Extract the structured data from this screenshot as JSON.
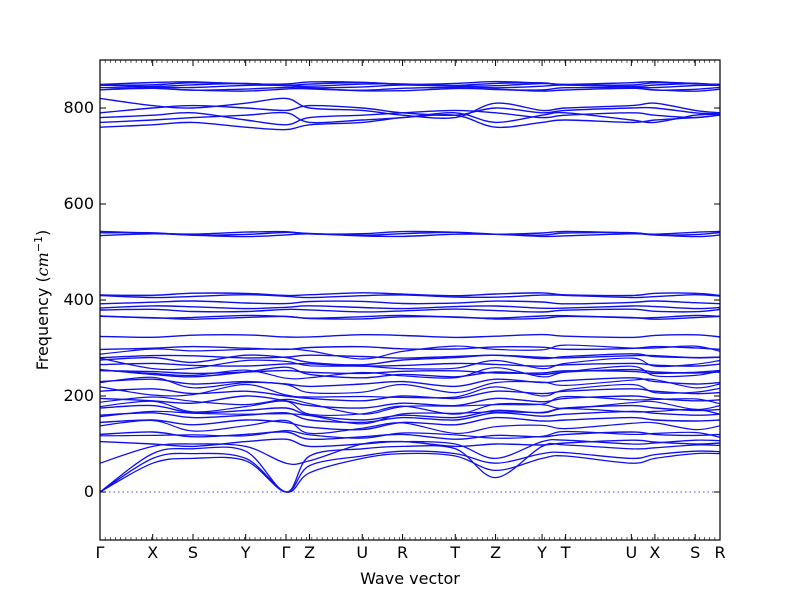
{
  "chart_data": {
    "type": "line",
    "xlabel": "Wave vector",
    "ylabel_text": "Frequency (",
    "ylabel_unit": "cm",
    "ylabel_exp": "−1",
    "ylabel_close": ")",
    "ylim": [
      -100,
      900
    ],
    "yticks": [
      0,
      200,
      400,
      600,
      800
    ],
    "zero_line": true,
    "grid": false,
    "colors": {
      "band": "#1010ee",
      "zero": "#4444ff",
      "axis": "#000000"
    },
    "kpoints": [
      {
        "label": "Γ",
        "x": 0.0
      },
      {
        "label": "X",
        "x": 0.085
      },
      {
        "label": "S",
        "x": 0.15
      },
      {
        "label": "Y",
        "x": 0.235
      },
      {
        "label": "Γ",
        "x": 0.3
      },
      {
        "label": "Z",
        "x": 0.338
      },
      {
        "label": "U",
        "x": 0.423
      },
      {
        "label": "R",
        "x": 0.488
      },
      {
        "label": "T",
        "x": 0.573
      },
      {
        "label": "Z",
        "x": 0.638
      },
      {
        "label": "Y",
        "x": 0.713
      },
      {
        "label": "T",
        "x": 0.751
      },
      {
        "label": "U",
        "x": 0.857
      },
      {
        "label": "X",
        "x": 0.895
      },
      {
        "label": "S",
        "x": 0.96
      },
      {
        "label": "R",
        "x": 1.0
      }
    ],
    "bands_flat": [
      838,
      840,
      845,
      848,
      850,
      852,
      535,
      538,
      540,
      408,
      412,
      395,
      385,
      378,
      363,
      365,
      325,
      300,
      282,
      265,
      250
    ],
    "bands_mid": [
      [
        175,
        180,
        165,
        170,
        175,
        160,
        150,
        160,
        155,
        170,
        165,
        175,
        180,
        175,
        170,
        172
      ],
      [
        210,
        215,
        205,
        210,
        200,
        195,
        190,
        200,
        195,
        210,
        205,
        210,
        215,
        210,
        205,
        207
      ],
      [
        230,
        235,
        225,
        230,
        225,
        220,
        225,
        230,
        220,
        235,
        228,
        232,
        238,
        230,
        225,
        228
      ],
      [
        145,
        150,
        140,
        150,
        145,
        135,
        130,
        145,
        140,
        155,
        148,
        150,
        155,
        150,
        148,
        150
      ],
      [
        120,
        125,
        115,
        120,
        125,
        110,
        115,
        120,
        110,
        118,
        115,
        120,
        125,
        120,
        118,
        120
      ],
      [
        195,
        190,
        185,
        200,
        190,
        180,
        175,
        185,
        180,
        195,
        188,
        195,
        200,
        195,
        190,
        192
      ],
      [
        105,
        100,
        95,
        105,
        110,
        95,
        100,
        105,
        95,
        100,
        98,
        102,
        108,
        104,
        100,
        102
      ],
      [
        160,
        165,
        155,
        160,
        165,
        150,
        145,
        155,
        150,
        165,
        158,
        162,
        168,
        164,
        160,
        162
      ],
      [
        255,
        245,
        240,
        250,
        260,
        245,
        238,
        245,
        240,
        250,
        245,
        250,
        255,
        250,
        248,
        250
      ],
      [
        275,
        280,
        270,
        285,
        280,
        270,
        265,
        275,
        280,
        285,
        278,
        282,
        288,
        282,
        280,
        281
      ]
    ],
    "bands_high": [
      [
        760,
        765,
        770,
        760,
        755,
        765,
        770,
        780,
        785,
        760,
        770,
        775,
        770,
        775,
        780,
        785
      ],
      [
        790,
        800,
        805,
        800,
        795,
        805,
        800,
        790,
        785,
        800,
        790,
        795,
        800,
        800,
        790,
        788
      ],
      [
        820,
        805,
        800,
        810,
        820,
        800,
        795,
        785,
        780,
        810,
        795,
        800,
        805,
        810,
        795,
        790
      ],
      [
        770,
        775,
        780,
        785,
        790,
        770,
        775,
        780,
        790,
        770,
        785,
        790,
        775,
        770,
        785,
        787
      ],
      [
        780,
        785,
        790,
        775,
        765,
        780,
        785,
        790,
        795,
        790,
        780,
        785,
        790,
        785,
        780,
        786
      ]
    ],
    "bands_low": [
      [
        0,
        70,
        80,
        70,
        0,
        40,
        70,
        80,
        75,
        45,
        70,
        75,
        60,
        70,
        80,
        80
      ],
      [
        0,
        60,
        70,
        65,
        0,
        55,
        75,
        85,
        80,
        60,
        80,
        82,
        70,
        78,
        85,
        84
      ],
      [
        0,
        80,
        90,
        85,
        0,
        75,
        90,
        95,
        90,
        30,
        95,
        98,
        90,
        92,
        98,
        97
      ],
      [
        60,
        95,
        100,
        95,
        60,
        65,
        100,
        105,
        100,
        70,
        105,
        108,
        100,
        102,
        108,
        107
      ]
    ]
  }
}
